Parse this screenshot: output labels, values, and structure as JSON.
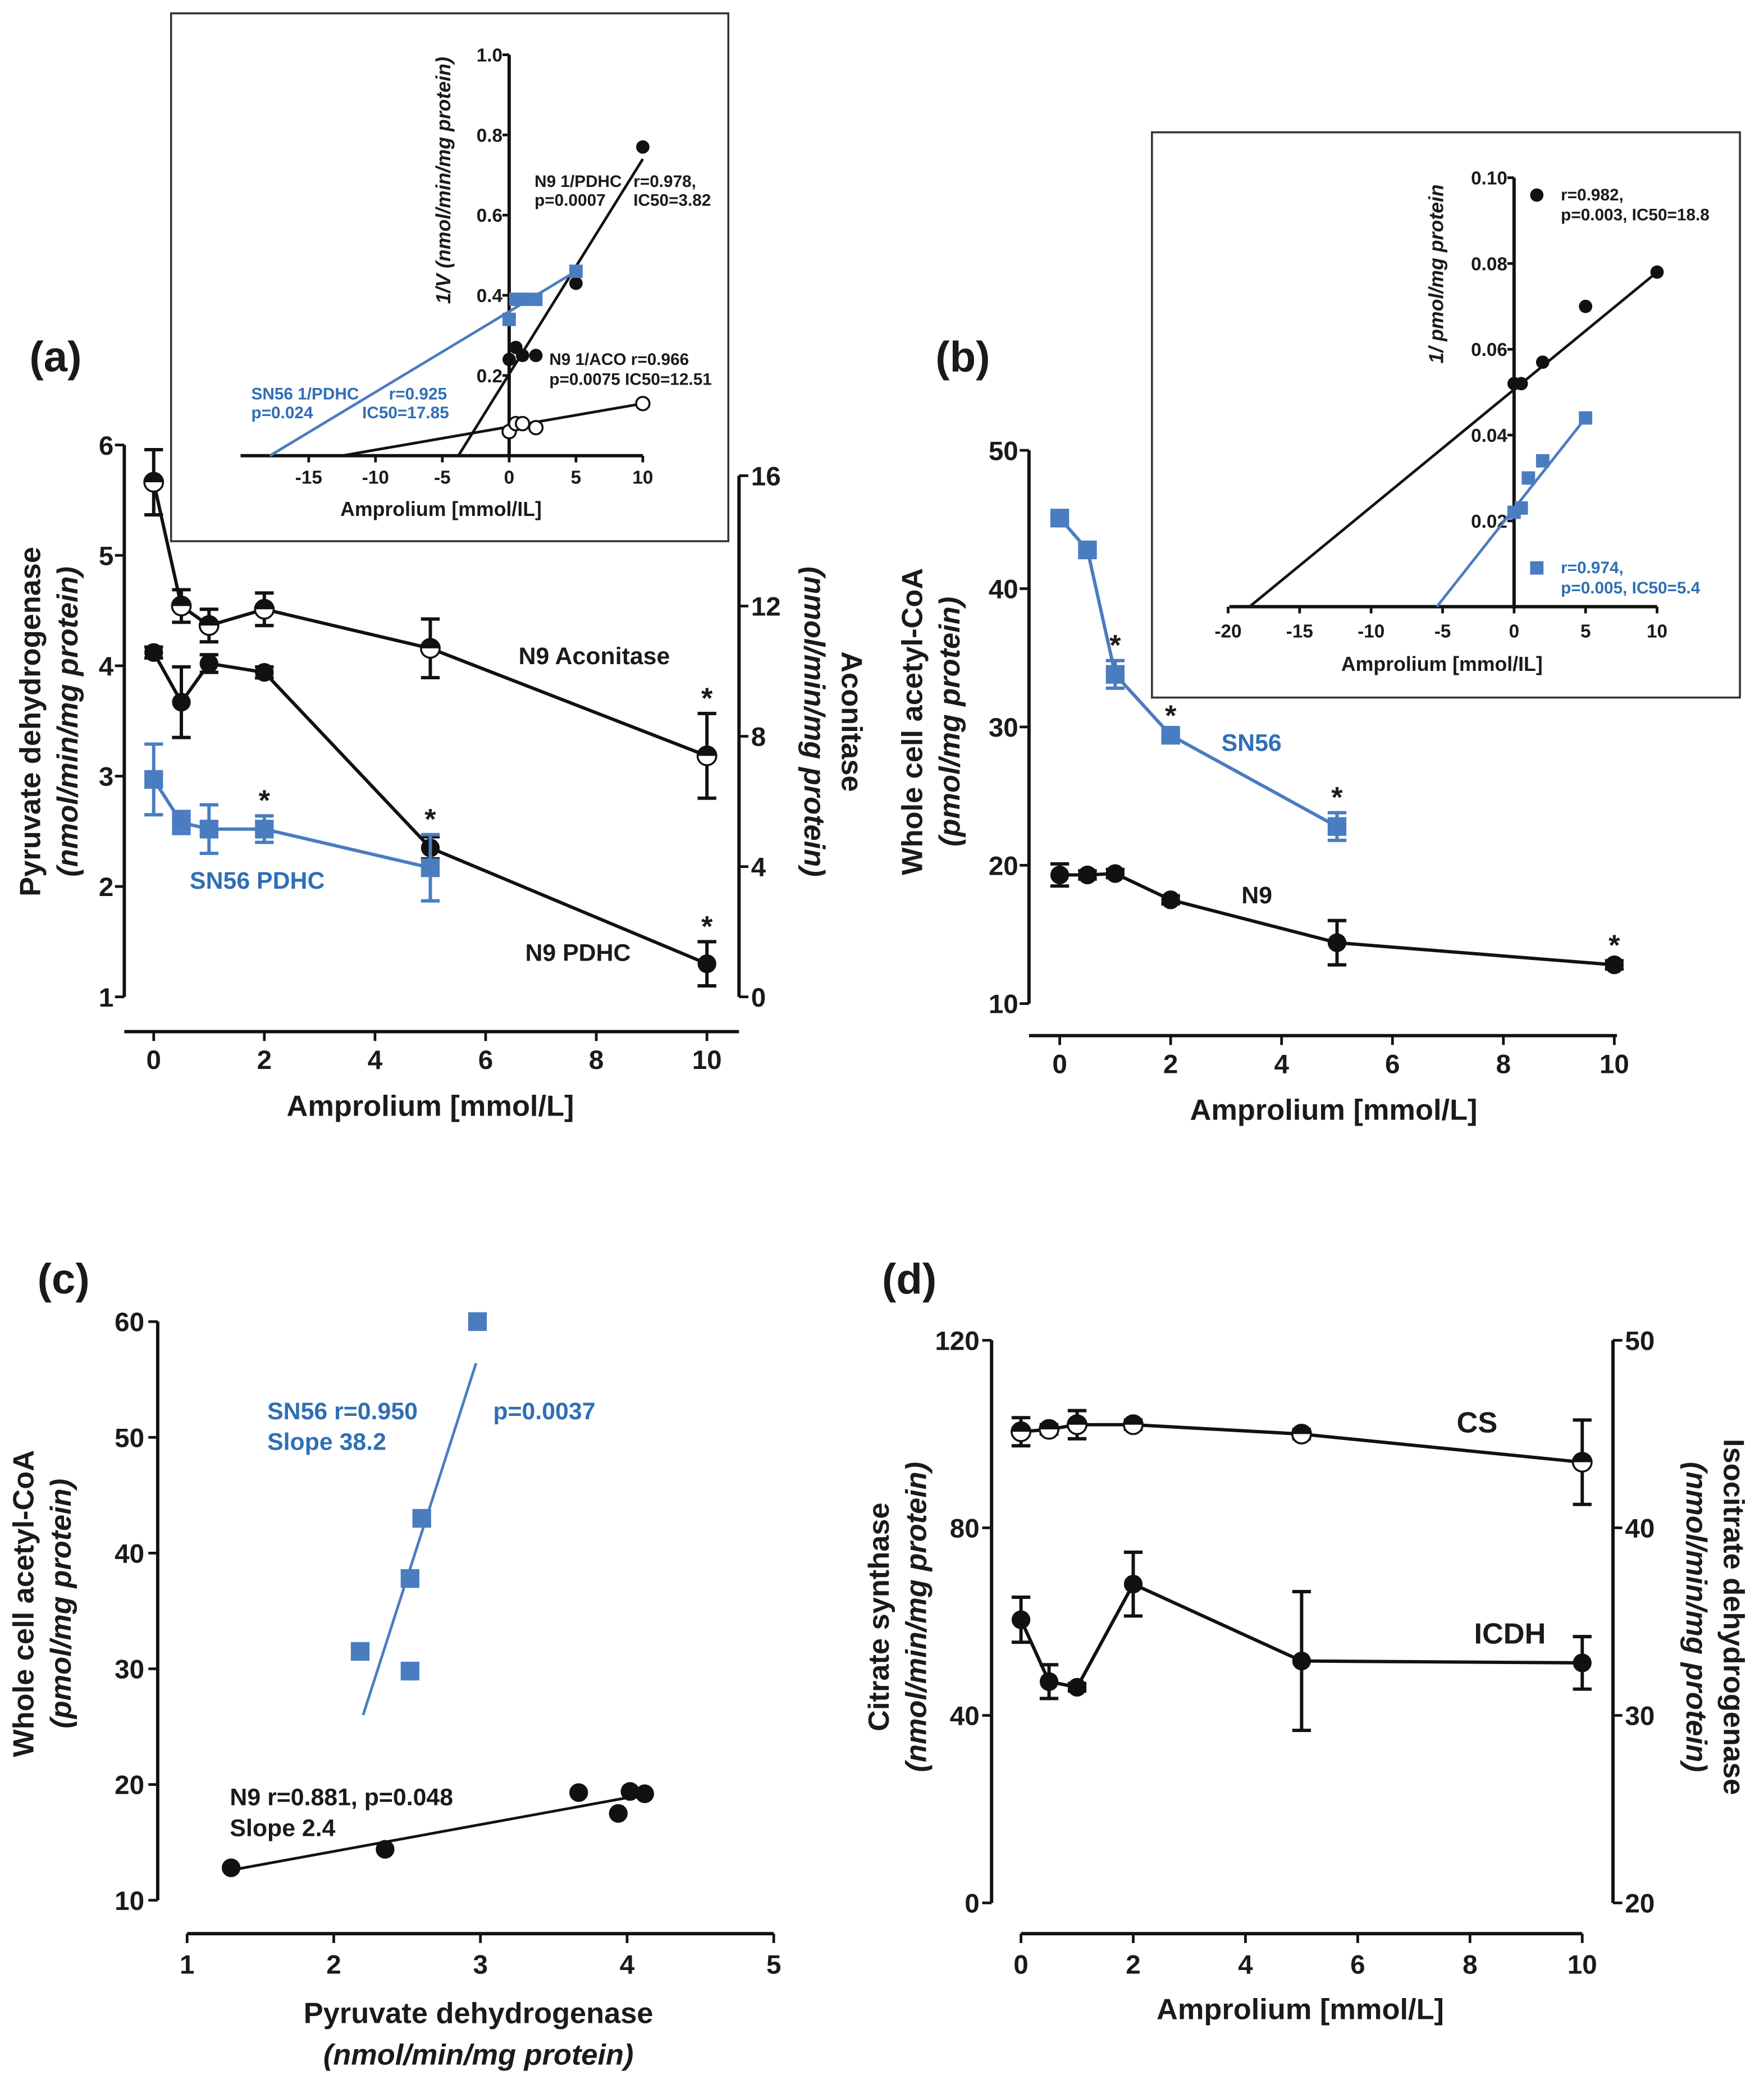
{
  "colors": {
    "blue": "#4a7cc0",
    "blue_text": "#2f6fb5",
    "black": "#111111"
  },
  "chart_data": [
    {
      "id": "a",
      "type": "line",
      "panel_label": "(a)",
      "xlabel": "Amprolium [mmol/L]",
      "xlim": [
        0,
        10
      ],
      "xticks": [
        "0",
        "2",
        "4",
        "6",
        "8",
        "10"
      ],
      "yaxes": [
        {
          "side": "left",
          "label": "Pyruvate dehydrogenase",
          "sublabel": "(nmol/min/mg protein)",
          "ylim": [
            1,
            6
          ],
          "ticks": [
            "1",
            "2",
            "3",
            "4",
            "5",
            "6"
          ]
        },
        {
          "side": "right",
          "label": "Aconitase",
          "sublabel": "(nmol/min/mg protein)",
          "ylim": [
            0,
            16
          ],
          "ticks": [
            "0",
            "4",
            "8",
            "12",
            "16"
          ]
        }
      ],
      "series": [
        {
          "name": "N9 Aconitase",
          "axis": 1,
          "marker": "half",
          "color": "#111111",
          "x": [
            0,
            0.5,
            1,
            2,
            5,
            10
          ],
          "y": [
            15.8,
            12.0,
            11.4,
            11.9,
            10.7,
            7.4
          ],
          "err": [
            1.0,
            0.5,
            0.5,
            0.5,
            0.9,
            1.3
          ],
          "sig": [
            false,
            false,
            false,
            false,
            false,
            true
          ]
        },
        {
          "name": "N9 PDHC",
          "axis": 0,
          "marker": "circle",
          "color": "#111111",
          "x": [
            0,
            0.5,
            1,
            2,
            5,
            10
          ],
          "y": [
            4.12,
            3.67,
            4.02,
            3.94,
            2.35,
            1.3
          ],
          "err": [
            0.05,
            0.32,
            0.08,
            0.05,
            0.1,
            0.2
          ],
          "sig": [
            false,
            false,
            false,
            false,
            false,
            true
          ]
        },
        {
          "name": "SN56 PDHC",
          "axis": 0,
          "marker": "square",
          "color": "#4a7cc0",
          "x": [
            0,
            0.5,
            1,
            2,
            5
          ],
          "y": [
            2.97,
            2.58,
            2.52,
            2.52,
            2.17
          ],
          "err": [
            0.32,
            0.1,
            0.22,
            0.12,
            0.3
          ],
          "sig": [
            false,
            false,
            false,
            true,
            true
          ]
        }
      ],
      "annotations": [
        "N9 Aconitase",
        "SN56 PDHC",
        "N9 PDHC"
      ]
    },
    {
      "id": "a-inset",
      "type": "scatter",
      "xlabel": "Amprolium [mmol/IL]",
      "xlim": [
        -18,
        10
      ],
      "xticks": [
        "-15",
        "-10",
        "-5",
        "0",
        "5",
        "10"
      ],
      "yaxes": [
        {
          "side": "center",
          "label": "1/V (nmol/min/mg protein)",
          "ylim": [
            0,
            1.0
          ],
          "ticks": [
            "0.2",
            "0.4",
            "0.6",
            "0.8",
            "1.0"
          ]
        }
      ],
      "series": [
        {
          "name": "N9 1/PDHC",
          "axis": 0,
          "marker": "circle",
          "color": "#111111",
          "x": [
            0,
            0.5,
            1,
            2,
            5,
            10
          ],
          "y": [
            0.24,
            0.27,
            0.25,
            0.25,
            0.43,
            0.77
          ],
          "fit": {
            "x": [
              -3.8,
              10
            ],
            "y": [
              0,
              0.74
            ]
          }
        },
        {
          "name": "N9 1/ACO",
          "axis": 0,
          "marker": "open",
          "color": "#111111",
          "x": [
            0,
            0.5,
            1,
            2,
            10
          ],
          "y": [
            0.06,
            0.08,
            0.08,
            0.07,
            0.13
          ],
          "fit": {
            "x": [
              -12.5,
              10
            ],
            "y": [
              0,
              0.13
            ]
          }
        },
        {
          "name": "SN56 1/PDHC",
          "axis": 0,
          "marker": "square",
          "color": "#4a7cc0",
          "x": [
            0,
            0.5,
            1,
            2,
            5
          ],
          "y": [
            0.34,
            0.39,
            0.39,
            0.39,
            0.46
          ],
          "fit": {
            "x": [
              -17.9,
              5
            ],
            "y": [
              0,
              0.46
            ]
          }
        }
      ],
      "annotations": [
        "N9 1/PDHC",
        "r=0.978,",
        "p=0.0007",
        "IC50=3.82",
        "N9 1/ACO r=0.966",
        "p=0.0075 IC50=12.51",
        "SN56 1/PDHC",
        "r=0.925",
        "p=0.024",
        "IC50=17.85"
      ]
    },
    {
      "id": "b",
      "type": "line",
      "panel_label": "(b)",
      "xlabel": "Amprolium [mmol/L]",
      "xlim": [
        0,
        10
      ],
      "xticks": [
        "0",
        "2",
        "4",
        "6",
        "8",
        "10"
      ],
      "yaxes": [
        {
          "side": "left",
          "label": "Whole cell acetyl-CoA",
          "sublabel": "(pmol/mg protein)",
          "ylim": [
            10,
            50
          ],
          "ticks": [
            "10",
            "20",
            "30",
            "40",
            "50"
          ]
        }
      ],
      "series": [
        {
          "name": "SN56",
          "axis": 0,
          "marker": "square",
          "color": "#4a7cc0",
          "x": [
            0,
            0.5,
            1,
            2,
            5
          ],
          "y": [
            45.1,
            42.8,
            33.8,
            29.4,
            22.8
          ],
          "err": [
            0.3,
            0.3,
            1.0,
            0.3,
            1.0
          ],
          "sig": [
            false,
            false,
            true,
            true,
            true
          ]
        },
        {
          "name": "N9",
          "axis": 0,
          "marker": "circle",
          "color": "#111111",
          "x": [
            0,
            0.5,
            1,
            2,
            5,
            10
          ],
          "y": [
            19.3,
            19.3,
            19.4,
            17.5,
            14.4,
            12.8
          ],
          "err": [
            0.8,
            0.3,
            0.3,
            0.3,
            1.6,
            0.3
          ],
          "sig": [
            false,
            false,
            false,
            false,
            false,
            true
          ]
        }
      ],
      "annotations": [
        "SN56",
        "N9"
      ]
    },
    {
      "id": "b-inset",
      "type": "scatter",
      "xlabel": "Amprolium [mmol/IL]",
      "xlim": [
        -20,
        10
      ],
      "xticks": [
        "-20",
        "-15",
        "-10",
        "-5",
        "0",
        "5",
        "10"
      ],
      "yaxes": [
        {
          "side": "center",
          "label": "1/ pmol/mg protein",
          "ylim": [
            0,
            0.1
          ],
          "ticks": [
            "0.02",
            "0.04",
            "0.06",
            "0.08",
            "0.10"
          ]
        }
      ],
      "series": [
        {
          "name": "N9",
          "axis": 0,
          "marker": "circle",
          "color": "#111111",
          "x": [
            0,
            0.5,
            2,
            5,
            10
          ],
          "y": [
            0.052,
            0.052,
            0.057,
            0.07,
            0.078
          ],
          "fit": {
            "x": [
              -18.5,
              10
            ],
            "y": [
              0,
              0.078
            ]
          }
        },
        {
          "name": "SN56",
          "axis": 0,
          "marker": "square",
          "color": "#4a7cc0",
          "x": [
            0,
            0.5,
            1,
            2,
            5
          ],
          "y": [
            0.022,
            0.023,
            0.03,
            0.034,
            0.044
          ],
          "fit": {
            "x": [
              -5.4,
              5
            ],
            "y": [
              0,
              0.044
            ]
          }
        }
      ],
      "annotations": [
        "r=0.982,",
        "p=0.003, IC50=18.8",
        "r=0.974,",
        "p=0.005, IC50=5.4"
      ]
    },
    {
      "id": "c",
      "type": "scatter",
      "panel_label": "(c)",
      "xlabel": "Pyruvate dehydrogenase",
      "xsublabel": "(nmol/min/mg protein)",
      "xlim": [
        1,
        5
      ],
      "xticks": [
        "1",
        "2",
        "3",
        "4",
        "5"
      ],
      "yaxes": [
        {
          "side": "left",
          "label": "Whole cell acetyl-CoA",
          "sublabel": "(pmol/mg protein)",
          "ylim": [
            10,
            60
          ],
          "ticks": [
            "10",
            "20",
            "30",
            "40",
            "50",
            "60"
          ]
        }
      ],
      "series": [
        {
          "name": "SN56",
          "axis": 0,
          "marker": "square",
          "color": "#4a7cc0",
          "x": [
            2.18,
            2.52,
            2.52,
            2.6,
            2.98
          ],
          "y": [
            31.5,
            29.8,
            37.8,
            43.0,
            60.0
          ],
          "fit": {
            "x": [
              2.2,
              2.97
            ],
            "y": [
              26.0,
              56.4
            ]
          }
        },
        {
          "name": "N9",
          "axis": 0,
          "marker": "circle",
          "color": "#111111",
          "x": [
            1.3,
            2.35,
            3.67,
            3.94,
            4.02,
            4.12
          ],
          "y": [
            12.8,
            14.4,
            19.3,
            17.5,
            19.4,
            19.2
          ],
          "fit": {
            "x": [
              1.3,
              4.02
            ],
            "y": [
              12.6,
              18.9
            ]
          }
        }
      ],
      "annotations": [
        "SN56 r=0.950",
        "p=0.0037",
        "Slope 38.2",
        "N9 r=0.881, p=0.048",
        "Slope 2.4"
      ]
    },
    {
      "id": "d",
      "type": "line",
      "panel_label": "(d)",
      "xlabel": "Amprolium [mmol/L]",
      "xlim": [
        0,
        10
      ],
      "xticks": [
        "0",
        "2",
        "4",
        "6",
        "8",
        "10"
      ],
      "yaxes": [
        {
          "side": "left",
          "label": "Citrate synthase",
          "sublabel": "(nmol/min/mg protein)",
          "ylim": [
            0,
            120
          ],
          "ticks": [
            "0",
            "40",
            "80",
            "120"
          ]
        },
        {
          "side": "right",
          "label": "Isocitrate dehydrogenase",
          "sublabel": "(nmol/min/mg protein)",
          "ylim": [
            20,
            50
          ],
          "ticks": [
            "20",
            "30",
            "40",
            "50"
          ]
        }
      ],
      "series": [
        {
          "name": "CS",
          "axis": 0,
          "marker": "half",
          "color": "#111111",
          "x": [
            0,
            0.5,
            1,
            2,
            5,
            10
          ],
          "y": [
            100.5,
            101,
            102,
            102,
            100,
            94
          ],
          "err": [
            3,
            1,
            3,
            1,
            1,
            9
          ],
          "sig": [
            false,
            false,
            false,
            false,
            false,
            false
          ]
        },
        {
          "name": "ICDH",
          "axis": 1,
          "marker": "circle",
          "color": "#111111",
          "x": [
            0,
            0.5,
            1,
            2,
            5,
            10
          ],
          "y": [
            35.1,
            31.8,
            31.5,
            37.0,
            32.9,
            32.8
          ],
          "err": [
            1.2,
            0.9,
            0.2,
            1.7,
            3.7,
            1.4
          ],
          "sig": [
            false,
            false,
            false,
            false,
            false,
            false
          ]
        }
      ],
      "annotations": [
        "CS",
        "ICDH"
      ]
    }
  ]
}
